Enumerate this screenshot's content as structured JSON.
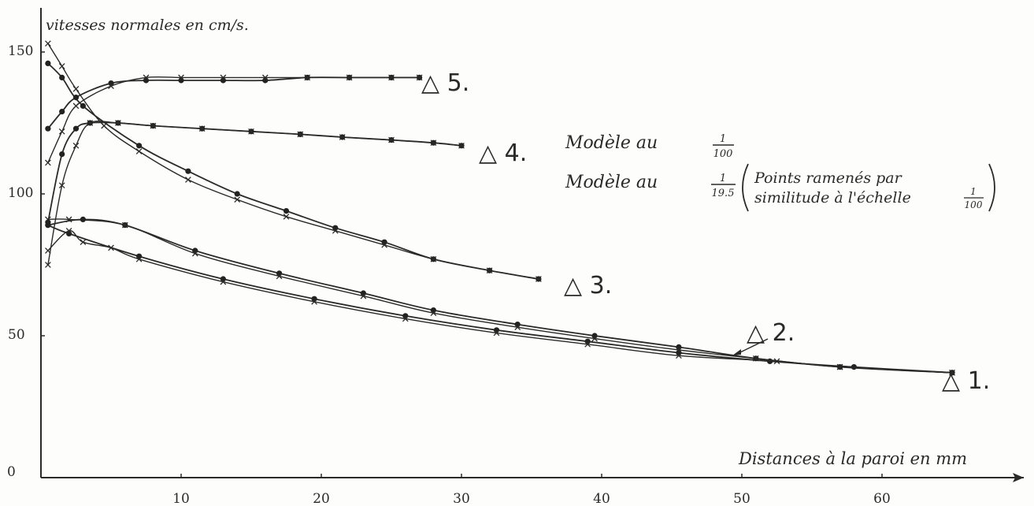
{
  "chart_data": {
    "type": "line",
    "ylabel": "vitesses normales en cm/s.",
    "xlabel": "Distances à la paroi en mm",
    "xlim": [
      0,
      70
    ],
    "ylim": [
      0,
      155
    ],
    "xticks": [
      10,
      20,
      30,
      40,
      50,
      60
    ],
    "yticks": [
      0,
      50,
      100,
      150
    ],
    "grid": false,
    "legend": {
      "line1_prefix": "Modèle au",
      "line1_fraction": {
        "num": "1",
        "den": "100"
      },
      "line2_prefix": "Modèle au",
      "line2_fraction": {
        "num": "1",
        "den": "19.5"
      },
      "line2_note_a": "Points ramenés par",
      "line2_note_b": "similitude à l'échelle",
      "line2_note_fraction": {
        "num": "1",
        "den": "100"
      }
    },
    "series": [
      {
        "name": "△ 1.",
        "model_1_100": [
          [
            0.5,
            89
          ],
          [
            2,
            86
          ],
          [
            7,
            78
          ],
          [
            13,
            70
          ],
          [
            19.5,
            63
          ],
          [
            26,
            57
          ],
          [
            32.5,
            52
          ],
          [
            39,
            48
          ],
          [
            45.5,
            44
          ],
          [
            52,
            41
          ],
          [
            58,
            39
          ],
          [
            65,
            37
          ]
        ],
        "model_1_19_5": [
          [
            0.5,
            80
          ],
          [
            2,
            87
          ],
          [
            3,
            83
          ],
          [
            5,
            81
          ],
          [
            7,
            77
          ],
          [
            13,
            69
          ],
          [
            19.5,
            62
          ],
          [
            26,
            56
          ],
          [
            32.5,
            51
          ],
          [
            39,
            47
          ],
          [
            45.5,
            43
          ],
          [
            52.5,
            41
          ],
          [
            57,
            39
          ],
          [
            65,
            37
          ]
        ]
      },
      {
        "name": "△ 2.",
        "model_1_100": [
          [
            0.5,
            89
          ],
          [
            3,
            91
          ],
          [
            6,
            89
          ],
          [
            11,
            80
          ],
          [
            17,
            72
          ],
          [
            23,
            65
          ],
          [
            28,
            59
          ],
          [
            34,
            54
          ],
          [
            39.5,
            50
          ],
          [
            45.5,
            46
          ],
          [
            51,
            42
          ],
          [
            57,
            39
          ],
          [
            65,
            37
          ]
        ],
        "model_1_19_5": [
          [
            0.5,
            91
          ],
          [
            2,
            91
          ],
          [
            6,
            89
          ],
          [
            11,
            79
          ],
          [
            17,
            71
          ],
          [
            23,
            64
          ],
          [
            28,
            58
          ],
          [
            34,
            53
          ],
          [
            39.5,
            49
          ],
          [
            45.5,
            45
          ],
          [
            51,
            42
          ],
          [
            57,
            39
          ],
          [
            65,
            37
          ]
        ]
      },
      {
        "name": "△ 3.",
        "model_1_100": [
          [
            0.5,
            146
          ],
          [
            1.5,
            141
          ],
          [
            3,
            131
          ],
          [
            7,
            117
          ],
          [
            10.5,
            108
          ],
          [
            14,
            100
          ],
          [
            17.5,
            94
          ],
          [
            21,
            88
          ],
          [
            24.5,
            83
          ],
          [
            28,
            77
          ],
          [
            32,
            73
          ],
          [
            35.5,
            70
          ]
        ],
        "model_1_19_5": [
          [
            0.5,
            153
          ],
          [
            1.5,
            145
          ],
          [
            2.5,
            137
          ],
          [
            4.5,
            124
          ],
          [
            7,
            115
          ],
          [
            10.5,
            105
          ],
          [
            14,
            98
          ],
          [
            17.5,
            92
          ],
          [
            21,
            87
          ],
          [
            24.5,
            82
          ],
          [
            28,
            77
          ],
          [
            32,
            73
          ],
          [
            35.5,
            70
          ]
        ]
      },
      {
        "name": "△ 4.",
        "model_1_100": [
          [
            0.5,
            90
          ],
          [
            1.5,
            114
          ],
          [
            2.5,
            123
          ],
          [
            3.5,
            125
          ],
          [
            5.5,
            125
          ],
          [
            8,
            124
          ],
          [
            11.5,
            123
          ],
          [
            15,
            122
          ],
          [
            18.5,
            121
          ],
          [
            21.5,
            120
          ],
          [
            25,
            119
          ],
          [
            28,
            118
          ],
          [
            30,
            117
          ]
        ],
        "model_1_19_5": [
          [
            0.5,
            75
          ],
          [
            1.5,
            103
          ],
          [
            2.5,
            117
          ],
          [
            3.5,
            125
          ],
          [
            5.5,
            125
          ],
          [
            8,
            124
          ],
          [
            11.5,
            123
          ],
          [
            15,
            122
          ],
          [
            18.5,
            121
          ],
          [
            21.5,
            120
          ],
          [
            25,
            119
          ],
          [
            28,
            118
          ],
          [
            30,
            117
          ]
        ]
      },
      {
        "name": "△ 5.",
        "model_1_100": [
          [
            0.5,
            123
          ],
          [
            1.5,
            129
          ],
          [
            2.5,
            134
          ],
          [
            5,
            139
          ],
          [
            7.5,
            140
          ],
          [
            10,
            140
          ],
          [
            13,
            140
          ],
          [
            16,
            140
          ],
          [
            19,
            141
          ],
          [
            22,
            141
          ],
          [
            25,
            141
          ],
          [
            27,
            141
          ]
        ],
        "model_1_19_5": [
          [
            0.5,
            111
          ],
          [
            1.5,
            122
          ],
          [
            2.5,
            131
          ],
          [
            5,
            138
          ],
          [
            7.5,
            141
          ],
          [
            10,
            141
          ],
          [
            13,
            141
          ],
          [
            16,
            141
          ],
          [
            19,
            141
          ],
          [
            22,
            141
          ],
          [
            25,
            141
          ],
          [
            27,
            141
          ]
        ]
      }
    ]
  }
}
